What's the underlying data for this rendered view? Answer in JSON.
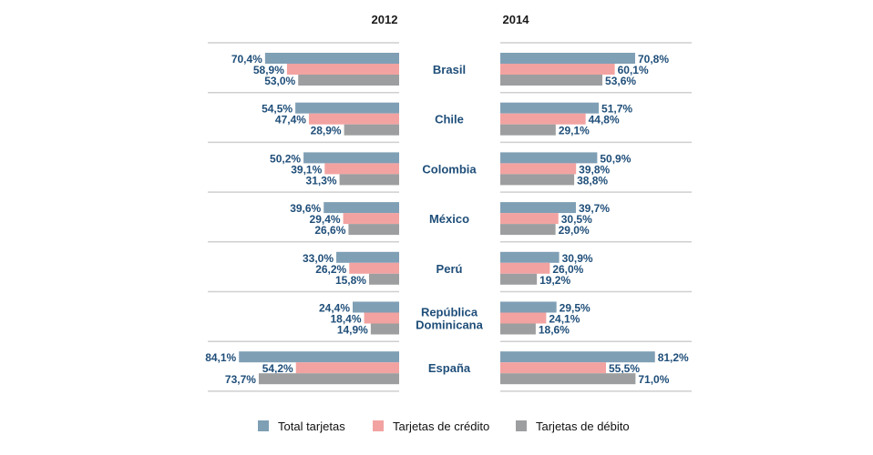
{
  "chart_data": {
    "type": "bar",
    "orientation": "horizontal-butterfly",
    "title": "",
    "panels": [
      "2012",
      "2014"
    ],
    "categories": [
      "Brasil",
      "Chile",
      "Colombia",
      "México",
      "Perú",
      "República Dominicana",
      "España"
    ],
    "category_lines": [
      [
        "Brasil"
      ],
      [
        "Chile"
      ],
      [
        "Colombia"
      ],
      [
        "México"
      ],
      [
        "Perú"
      ],
      [
        "República",
        "Dominicana"
      ],
      [
        "España"
      ]
    ],
    "series": [
      {
        "name": "Total tarjetas",
        "color": "#7f9fb5",
        "values_2012": [
          70.4,
          54.5,
          50.2,
          39.6,
          33.0,
          24.4,
          84.1
        ],
        "values_2014": [
          70.8,
          51.7,
          50.9,
          39.7,
          30.9,
          29.5,
          81.2
        ],
        "labels_2012": [
          "70,4%",
          "54,5%",
          "50,2%",
          "39,6%",
          "33,0%",
          "24,4%",
          "84,1%"
        ],
        "labels_2014": [
          "70,8%",
          "51,7%",
          "50,9%",
          "39,7%",
          "30,9%",
          "29,5%",
          "81,2%"
        ]
      },
      {
        "name": "Tarjetas de crédito",
        "color": "#f2a3a1",
        "values_2012": [
          58.9,
          47.4,
          39.1,
          29.4,
          26.2,
          18.4,
          54.2
        ],
        "values_2014": [
          60.1,
          44.8,
          39.8,
          30.5,
          26.0,
          24.1,
          55.5
        ],
        "labels_2012": [
          "58,9%",
          "47,4%",
          "39,1%",
          "29,4%",
          "26,2%",
          "18,4%",
          "54,2%"
        ],
        "labels_2014": [
          "60,1%",
          "44,8%",
          "39,8%",
          "30,5%",
          "26,0%",
          "24,1%",
          "55,5%"
        ]
      },
      {
        "name": "Tarjetas de débito",
        "color": "#9d9ea0",
        "values_2012": [
          53.0,
          28.9,
          31.3,
          26.6,
          15.8,
          14.9,
          73.7
        ],
        "values_2014": [
          53.6,
          29.1,
          38.8,
          29.0,
          19.2,
          18.6,
          71.0
        ],
        "labels_2012": [
          "53,0%",
          "28,9%",
          "31,3%",
          "26,6%",
          "15,8%",
          "14,9%",
          "73,7%"
        ],
        "labels_2014": [
          "53,6%",
          "29,1%",
          "38,8%",
          "29,0%",
          "19,2%",
          "18,6%",
          "71,0%"
        ]
      }
    ],
    "xlabel": "",
    "ylabel": "",
    "xlim": [
      0,
      100
    ],
    "grid": false,
    "legend": {
      "placement": "bottom-center",
      "entries": [
        "Total tarjetas",
        "Tarjetas de crédito",
        "Tarjetas de débito"
      ]
    }
  }
}
